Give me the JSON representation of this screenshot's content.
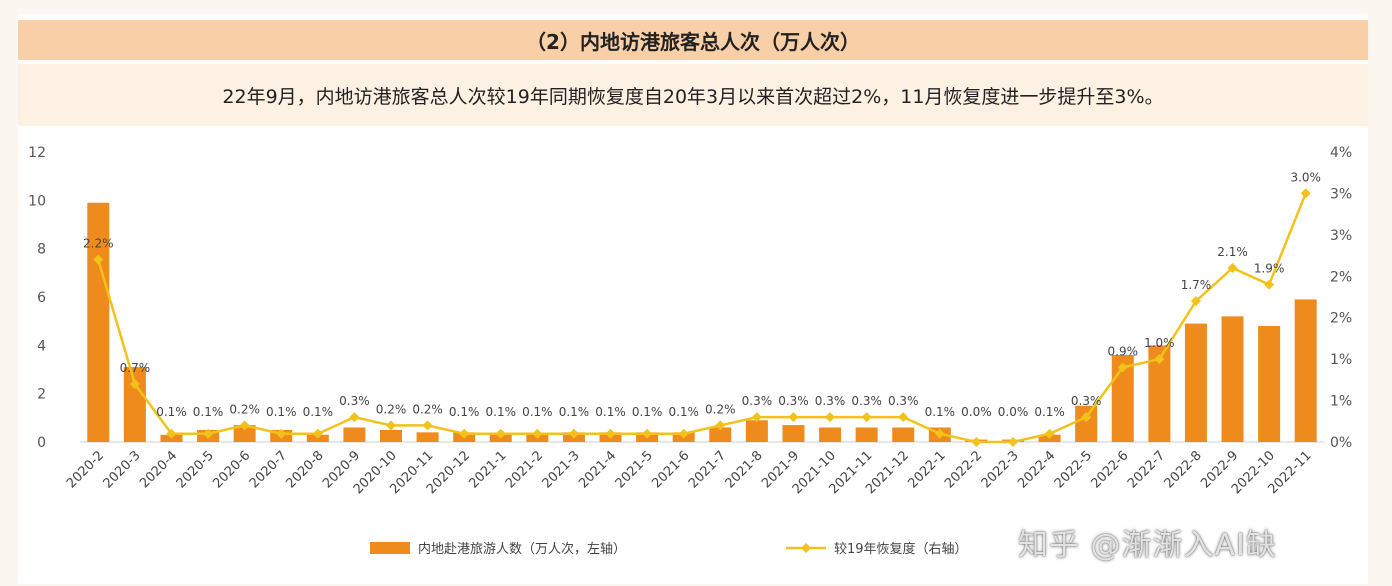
{
  "header": {
    "title": "（2）内地访港旅客总人次（万人次）",
    "subtitle": "22年9月，内地访港旅客总人次较19年同期恢复度自20年3月以来首次超过2%，11月恢复度进一步提升至3%。"
  },
  "watermark": "知乎 @渐渐入AI缺",
  "chart_data": {
    "type": "bar",
    "categories": [
      "2020-2",
      "2020-3",
      "2020-4",
      "2020-5",
      "2020-6",
      "2020-7",
      "2020-8",
      "2020-9",
      "2020-10",
      "2020-11",
      "2020-12",
      "2021-1",
      "2021-2",
      "2021-3",
      "2021-4",
      "2021-5",
      "2021-6",
      "2021-7",
      "2021-8",
      "2021-9",
      "2021-10",
      "2021-11",
      "2021-12",
      "2022-1",
      "2022-2",
      "2022-3",
      "2022-4",
      "2022-5",
      "2022-6",
      "2022-7",
      "2022-8",
      "2022-9",
      "2022-10",
      "2022-11"
    ],
    "series": [
      {
        "name": "内地赴港旅游人数（万人次，左轴）",
        "type": "bar",
        "axis": "left",
        "color": "#ee8b1c",
        "values": [
          9.9,
          3.1,
          0.3,
          0.5,
          0.7,
          0.5,
          0.3,
          0.6,
          0.5,
          0.4,
          0.4,
          0.3,
          0.3,
          0.4,
          0.4,
          0.4,
          0.4,
          0.6,
          0.9,
          0.7,
          0.6,
          0.6,
          0.6,
          0.6,
          0.1,
          0.1,
          0.3,
          1.5,
          3.6,
          4.0,
          4.9,
          5.2,
          4.8,
          5.9
        ]
      },
      {
        "name": "较19年恢复度（右轴）",
        "type": "line",
        "axis": "right",
        "color": "#f2c21b",
        "values": [
          2.2,
          0.7,
          0.1,
          0.1,
          0.2,
          0.1,
          0.1,
          0.3,
          0.2,
          0.2,
          0.1,
          0.1,
          0.1,
          0.1,
          0.1,
          0.1,
          0.1,
          0.2,
          0.3,
          0.3,
          0.3,
          0.3,
          0.3,
          0.1,
          0.0,
          0.0,
          0.1,
          0.3,
          0.9,
          1.0,
          1.7,
          2.1,
          1.9,
          3.0
        ],
        "labels": [
          "2.2%",
          "0.7%",
          "0.1%",
          "0.1%",
          "0.2%",
          "0.1%",
          "0.1%",
          "0.3%",
          "0.2%",
          "0.2%",
          "0.1%",
          "0.1%",
          "0.1%",
          "0.1%",
          "0.1%",
          "0.1%",
          "0.1%",
          "0.2%",
          "0.3%",
          "0.3%",
          "0.3%",
          "0.3%",
          "0.3%",
          "0.1%",
          "0.0%",
          "0.0%",
          "0.1%",
          "0.3%",
          "0.9%",
          "1.0%",
          "1.7%",
          "2.1%",
          "1.9%",
          "3.0%"
        ]
      }
    ],
    "y_left": {
      "ylim": [
        0,
        12
      ],
      "ticks": [
        "0",
        "2",
        "4",
        "6",
        "8",
        "10",
        "12"
      ]
    },
    "y_right": {
      "ylim": [
        0,
        3.5
      ],
      "ticks": [
        "0%",
        "1%",
        "1%",
        "2%",
        "2%",
        "3%",
        "3%",
        "4%"
      ]
    },
    "grid": false,
    "legend": "bottom"
  }
}
